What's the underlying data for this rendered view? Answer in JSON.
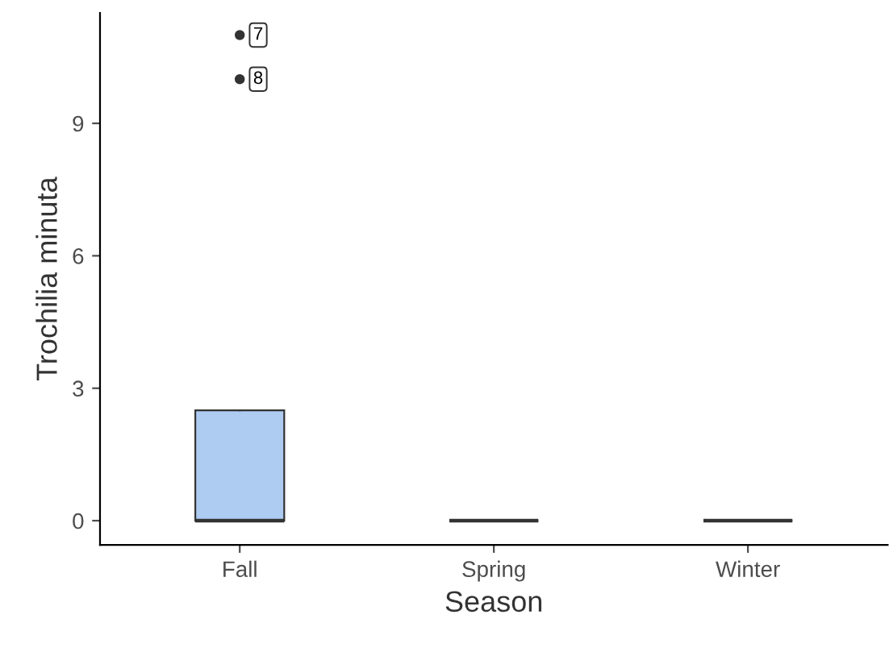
{
  "chart_data": {
    "type": "box",
    "xlabel": "Season",
    "ylabel": "Trochilia minuta",
    "categories": [
      "Fall",
      "Spring",
      "Winter"
    ],
    "boxes": [
      {
        "low": 0,
        "q1": 0,
        "median": 0,
        "q3": 2.5,
        "high": 2.5,
        "outliers": [
          11,
          10
        ]
      },
      {
        "low": 0,
        "q1": 0,
        "median": 0,
        "q3": 0,
        "high": 0
      },
      {
        "low": 0,
        "q1": 0,
        "median": 0,
        "q3": 0,
        "high": 0
      }
    ],
    "colors": [
      "#aecbf2",
      "#333333",
      "#333333"
    ],
    "ylim": [
      -0.55,
      11.5
    ],
    "yticks": [
      0,
      3,
      6,
      9
    ],
    "annotations": [
      "7",
      "8"
    ],
    "grid": false,
    "legend": false
  }
}
